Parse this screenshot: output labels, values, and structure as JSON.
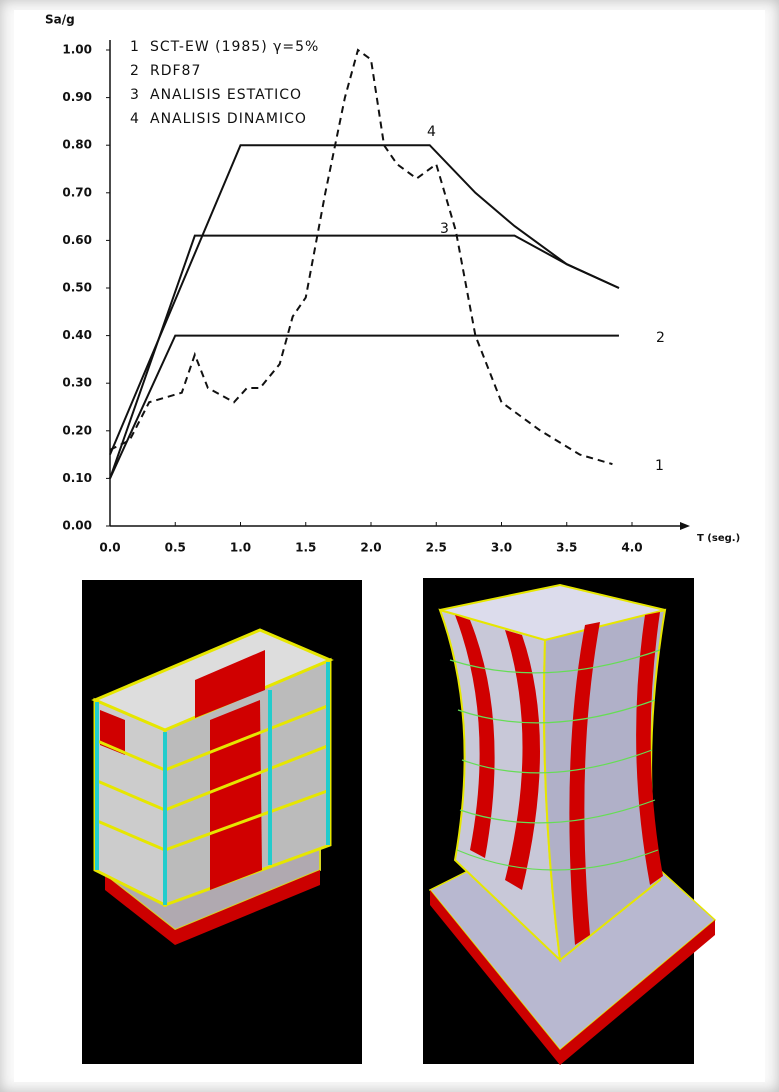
{
  "chart_data": {
    "type": "line",
    "ylabel": "Sa/g",
    "xlabel": "T (seg.)",
    "xlim": [
      0,
      4.0
    ],
    "ylim": [
      0,
      1.0
    ],
    "xticks": [
      {
        "value": 0,
        "label": "0.0"
      },
      {
        "value": 0.5,
        "label": "0.5"
      },
      {
        "value": 1,
        "label": "1.0"
      },
      {
        "value": 1.5,
        "label": "1.5"
      },
      {
        "value": 2,
        "label": "2.0"
      },
      {
        "value": 2.5,
        "label": "2.5"
      },
      {
        "value": 3,
        "label": "3.0"
      },
      {
        "value": 3.5,
        "label": "3.5"
      },
      {
        "value": 4,
        "label": "4.0"
      }
    ],
    "yticks": [
      {
        "value": 0,
        "label": "0.00"
      },
      {
        "value": 0.1,
        "label": "0.10"
      },
      {
        "value": 0.2,
        "label": "0.20"
      },
      {
        "value": 0.3,
        "label": "0.30"
      },
      {
        "value": 0.4,
        "label": "0.40"
      },
      {
        "value": 0.5,
        "label": "0.50"
      },
      {
        "value": 0.6,
        "label": "0.60"
      },
      {
        "value": 0.7,
        "label": "0.70"
      },
      {
        "value": 0.8,
        "label": "0.80"
      },
      {
        "value": 0.9,
        "label": "0.90"
      },
      {
        "value": 1,
        "label": "1.00"
      }
    ],
    "series": [
      {
        "label": "1",
        "name": "SCT-EW (1985) γ=5%",
        "color": "#111111",
        "dashed": true,
        "x": [
          0,
          0.15,
          0.3,
          0.55,
          0.65,
          0.75,
          0.95,
          1.05,
          1.15,
          1.3,
          1.4,
          1.5,
          1.65,
          1.8,
          1.9,
          2.0,
          2.1,
          2.2,
          2.35,
          2.5,
          2.65,
          2.8,
          3.0,
          3.3,
          3.6,
          3.85
        ],
        "values": [
          0.16,
          0.18,
          0.26,
          0.28,
          0.36,
          0.29,
          0.26,
          0.29,
          0.29,
          0.34,
          0.44,
          0.48,
          0.7,
          0.9,
          1.0,
          0.98,
          0.8,
          0.76,
          0.73,
          0.76,
          0.62,
          0.4,
          0.26,
          0.2,
          0.15,
          0.13
        ]
      },
      {
        "label": "2",
        "name": "RDF87",
        "color": "#111111",
        "dashed": false,
        "x": [
          0,
          0.5,
          3.9
        ],
        "values": [
          0.1,
          0.4,
          0.4
        ]
      },
      {
        "label": "3",
        "name": "ANALISIS ESTATICO",
        "color": "#111111",
        "dashed": false,
        "x": [
          0,
          0.65,
          3.1,
          3.5,
          3.9
        ],
        "values": [
          0.1,
          0.61,
          0.61,
          0.55,
          0.5
        ]
      },
      {
        "label": "4",
        "name": "ANALISIS DINAMICO",
        "color": "#111111",
        "dashed": false,
        "x": [
          0,
          1.0,
          2.45,
          2.8,
          3.1,
          3.5,
          3.9
        ],
        "values": [
          0.15,
          0.8,
          0.8,
          0.7,
          0.63,
          0.55,
          0.5
        ]
      }
    ]
  }
}
